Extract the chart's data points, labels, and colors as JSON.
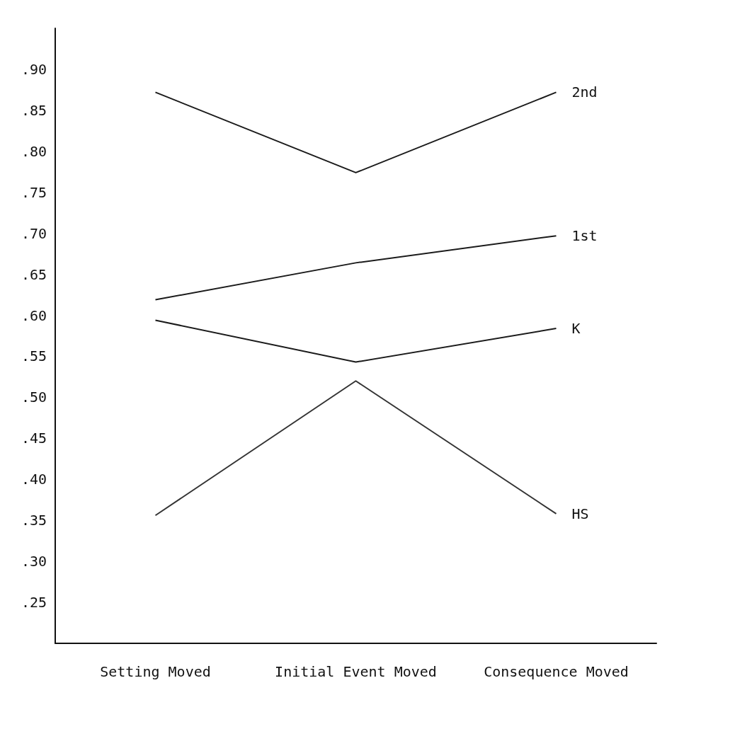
{
  "chart_data": {
    "type": "line",
    "categories": [
      "Setting Moved",
      "Initial Event Moved",
      "Consequence Moved"
    ],
    "series": [
      {
        "name": "2nd",
        "color": "#1a1a1a",
        "values": [
          0.872,
          0.774,
          0.872
        ]
      },
      {
        "name": "1st",
        "color": "#1a1a1a",
        "values": [
          0.619,
          0.664,
          0.697
        ]
      },
      {
        "name": "K",
        "color": "#1a1a1a",
        "values": [
          0.594,
          0.543,
          0.584
        ]
      },
      {
        "name": "HS",
        "color": "#333333",
        "values": [
          0.356,
          0.52,
          0.358
        ]
      }
    ],
    "ylim": [
      0.2,
      0.95
    ],
    "yticks": [
      {
        "value": 0.25,
        "label": ".25"
      },
      {
        "value": 0.3,
        "label": ".30"
      },
      {
        "value": 0.35,
        "label": ".35"
      },
      {
        "value": 0.4,
        "label": ".40"
      },
      {
        "value": 0.45,
        "label": ".45"
      },
      {
        "value": 0.5,
        "label": ".50"
      },
      {
        "value": 0.55,
        "label": ".55"
      },
      {
        "value": 0.6,
        "label": ".60"
      },
      {
        "value": 0.65,
        "label": ".65"
      },
      {
        "value": 0.7,
        "label": ".70"
      },
      {
        "value": 0.75,
        "label": ".75"
      },
      {
        "value": 0.8,
        "label": ".80"
      },
      {
        "value": 0.85,
        "label": ".85"
      },
      {
        "value": 0.9,
        "label": ".90"
      }
    ],
    "grid": false,
    "legend": false,
    "marker": "none",
    "line_style": "solid"
  }
}
